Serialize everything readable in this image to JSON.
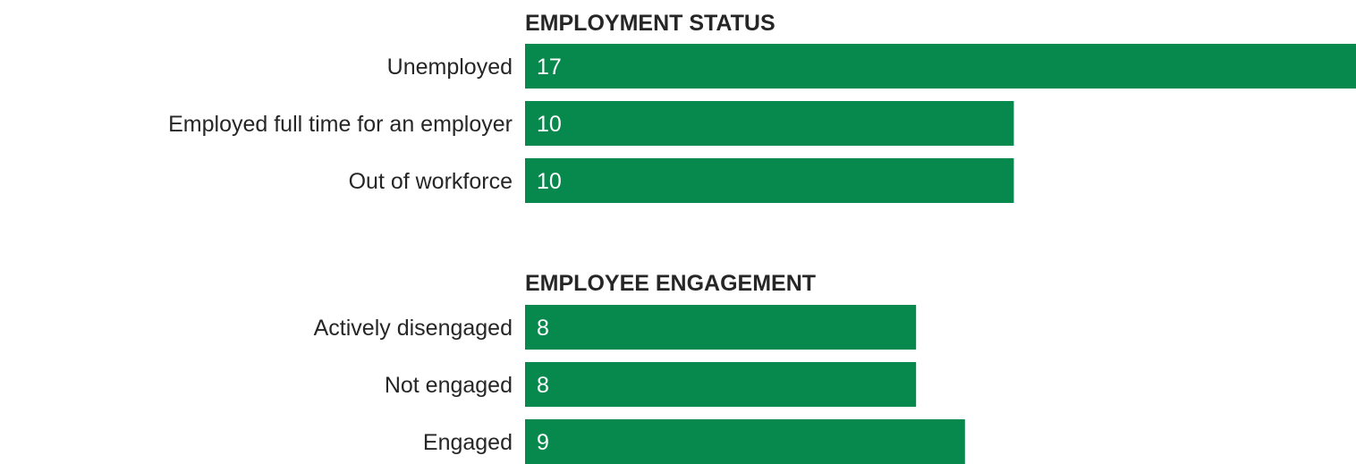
{
  "chart_data": [
    {
      "type": "bar",
      "orientation": "horizontal",
      "title": "EMPLOYMENT STATUS",
      "categories": [
        "Unemployed",
        "Employed full time for an employer",
        "Out of workforce"
      ],
      "values": [
        17,
        10,
        10
      ],
      "data_labels": [
        "17",
        "10",
        "10"
      ],
      "color": "#07894e",
      "xlim": [
        0,
        17
      ],
      "grid": false,
      "legend": "none"
    },
    {
      "type": "bar",
      "orientation": "horizontal",
      "title": "EMPLOYEE ENGAGEMENT",
      "categories": [
        "Actively disengaged",
        "Not engaged",
        "Engaged"
      ],
      "values": [
        8,
        8,
        9
      ],
      "data_labels": [
        "8",
        "8",
        "9"
      ],
      "color": "#07894e",
      "xlim": [
        0,
        17
      ],
      "grid": false,
      "legend": "none"
    }
  ]
}
